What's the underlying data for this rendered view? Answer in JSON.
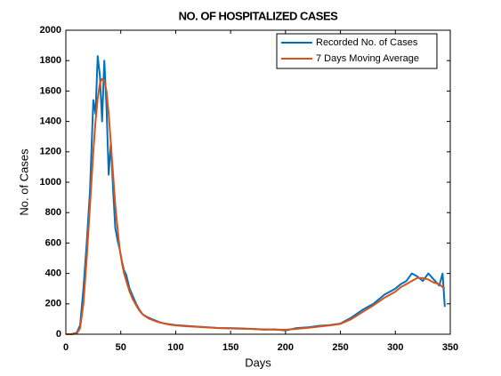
{
  "chart_data": {
    "type": "line",
    "title": "NO. OF HOSPITALIZED CASES",
    "xlabel": "Days",
    "ylabel": "No. of Cases",
    "x": [
      0,
      5,
      10,
      13,
      16,
      19,
      22,
      25,
      27,
      29,
      31,
      33,
      35,
      37,
      39,
      41,
      43,
      45,
      47,
      49,
      51,
      53,
      55,
      58,
      61,
      64,
      67,
      70,
      75,
      80,
      85,
      90,
      95,
      100,
      110,
      120,
      130,
      140,
      150,
      160,
      170,
      180,
      190,
      200,
      210,
      220,
      230,
      240,
      250,
      260,
      270,
      280,
      290,
      300,
      305,
      310,
      315,
      320,
      325,
      330,
      335,
      340,
      343,
      345
    ],
    "series": [
      {
        "name": "Recorded No. of Cases",
        "color": "#0072bd",
        "values": [
          0,
          0,
          10,
          60,
          300,
          600,
          950,
          1540,
          1450,
          1830,
          1700,
          1400,
          1800,
          1500,
          1050,
          1260,
          950,
          700,
          620,
          560,
          480,
          420,
          390,
          300,
          250,
          200,
          160,
          130,
          110,
          95,
          80,
          70,
          65,
          60,
          55,
          50,
          45,
          40,
          40,
          38,
          35,
          30,
          32,
          25,
          40,
          45,
          55,
          60,
          70,
          110,
          160,
          200,
          260,
          300,
          330,
          350,
          400,
          380,
          350,
          400,
          360,
          320,
          400,
          180
        ]
      },
      {
        "name": "7 Days Moving Average",
        "color": "#d95319",
        "values": [
          0,
          0,
          5,
          40,
          200,
          500,
          850,
          1200,
          1400,
          1550,
          1650,
          1680,
          1670,
          1600,
          1450,
          1250,
          1050,
          850,
          700,
          560,
          470,
          400,
          350,
          280,
          230,
          190,
          155,
          130,
          105,
          90,
          78,
          70,
          62,
          58,
          52,
          48,
          44,
          40,
          38,
          36,
          34,
          32,
          30,
          30,
          35,
          42,
          50,
          58,
          68,
          100,
          145,
          190,
          240,
          280,
          310,
          330,
          350,
          370,
          370,
          360,
          340,
          330,
          310,
          300
        ]
      }
    ],
    "xlim": [
      0,
      350
    ],
    "xticks": [
      0,
      50,
      100,
      150,
      200,
      250,
      300,
      350
    ],
    "ylim": [
      0,
      2000
    ],
    "yticks": [
      0,
      200,
      400,
      600,
      800,
      1000,
      1200,
      1400,
      1600,
      1800,
      2000
    ],
    "legend": "northeast"
  }
}
